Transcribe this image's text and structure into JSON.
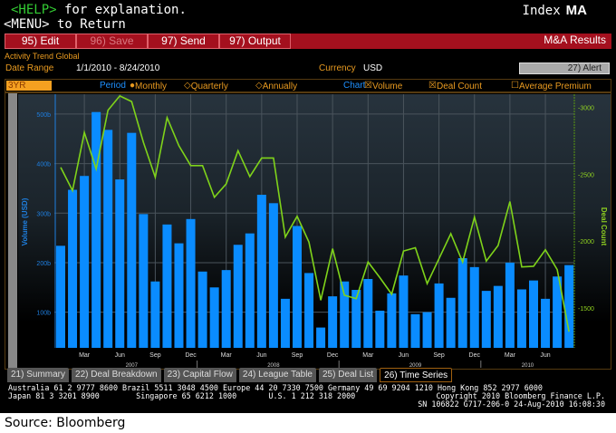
{
  "header": {
    "help_key": "<HELP>",
    "help_text": " for explanation.",
    "menu_text": "<MENU> to Return",
    "index_label": "Index",
    "index_code": "MA"
  },
  "toolbar": {
    "edit": "95) Edit",
    "save": "96) Save",
    "send": "97) Send",
    "output": "97) Output",
    "results": "M&A Results"
  },
  "info": {
    "title": "Activity Trend Global",
    "date_range_label": "Date Range",
    "date_range": "1/1/2010 - 8/24/2010",
    "currency_label": "Currency",
    "currency": "USD",
    "alert": "27) Alert"
  },
  "options": {
    "range": "3YR",
    "period_label": "Period",
    "monthly": "Monthly",
    "quarterly": "Quarterly",
    "annually": "Annually",
    "chart_label": "Chart",
    "volume": "Volume",
    "deal_count": "Deal Count",
    "avg_premium": "Average Premium"
  },
  "colors": {
    "bar": "#0a8cff",
    "line": "#7fd31a",
    "red": "#a4101e"
  },
  "chart_data": {
    "type": "bar+line",
    "x": [
      "Jan 2007",
      "Feb 2007",
      "Mar 2007",
      "Apr 2007",
      "May 2007",
      "Jun 2007",
      "Jul 2007",
      "Aug 2007",
      "Sep 2007",
      "Oct 2007",
      "Nov 2007",
      "Dec 2007",
      "Jan 2008",
      "Feb 2008",
      "Mar 2008",
      "Apr 2008",
      "May 2008",
      "Jun 2008",
      "Jul 2008",
      "Aug 2008",
      "Sep 2008",
      "Oct 2008",
      "Nov 2008",
      "Dec 2008",
      "Jan 2009",
      "Feb 2009",
      "Mar 2009",
      "Apr 2009",
      "May 2009",
      "Jun 2009",
      "Jul 2009",
      "Aug 2009",
      "Sep 2009",
      "Oct 2009",
      "Nov 2009",
      "Dec 2009",
      "Jan 2010",
      "Feb 2010",
      "Mar 2010",
      "Apr 2010",
      "May 2010",
      "Jun 2010",
      "Jul 2010",
      "Aug 2010"
    ],
    "series": [
      {
        "name": "Volume",
        "axis": "left",
        "unit": "b USD",
        "values": [
          234,
          347,
          375,
          504,
          468,
          368,
          462,
          298,
          162,
          277,
          239,
          288,
          182,
          150,
          185,
          236,
          259,
          337,
          320,
          127,
          274,
          179,
          69,
          132,
          162,
          145,
          167,
          103,
          138,
          174,
          96,
          100,
          158,
          129,
          209,
          191,
          143,
          153,
          200,
          146,
          164,
          127,
          172,
          195
        ]
      },
      {
        "name": "Deal Count",
        "axis": "right",
        "values": [
          2552,
          2378,
          2813,
          2540,
          2980,
          3087,
          3045,
          2739,
          2478,
          2925,
          2714,
          2565,
          2565,
          2328,
          2428,
          2677,
          2483,
          2622,
          2622,
          2030,
          2186,
          1992,
          1557,
          1943,
          1594,
          1569,
          1843,
          1726,
          1602,
          1925,
          1950,
          1681,
          1868,
          2055,
          1843,
          2179,
          1850,
          1967,
          2296,
          1806,
          1811,
          1935,
          1786,
          1321
        ]
      }
    ],
    "ylabel": "Volume (USD)",
    "y2label": "Deal Count",
    "yticks": [
      "100b",
      "200b",
      "300b",
      "400b",
      "500b"
    ],
    "yticks_values": [
      100,
      200,
      300,
      400,
      500
    ],
    "y2ticks": [
      "1500",
      "2000",
      "2500",
      "3000"
    ],
    "y2ticks_values": [
      1500,
      2000,
      2500,
      3000
    ],
    "ylim": [
      28,
      540
    ],
    "y2lim": [
      1200,
      3100
    ],
    "month_ticks": [
      "Mar",
      "Jun",
      "Sep",
      "Dec",
      "Mar",
      "Jun",
      "Sep",
      "Dec",
      "Mar",
      "Jun",
      "Sep",
      "Dec",
      "Mar",
      "Jun"
    ],
    "month_tick_index": [
      2,
      5,
      8,
      11,
      14,
      17,
      20,
      23,
      26,
      29,
      32,
      35,
      38,
      41
    ],
    "years": [
      "2007",
      "2008",
      "2009",
      "2010"
    ],
    "grid": true
  },
  "tabs": [
    "21) Summary",
    "22) Deal Breakdown",
    "23) Capital Flow",
    "24) League Table",
    "25) Deal List",
    "26) Time Series"
  ],
  "footer": {
    "line1": "Australia 61 2 9777 8600 Brazil 5511 3048 4500 Europe 44 20 7330 7500 Germany 49 69 9204 1210 Hong Kong 852 2977 6000",
    "line2": "Japan 81 3 3201 8900        Singapore 65 6212 1000       U.S. 1 212 318 2000",
    "copyright": "Copyright 2010 Bloomberg Finance L.P.",
    "serial": "SN 106822 G717-206-0 24-Aug-2010 16:08:30"
  },
  "source": "Source: Bloomberg"
}
